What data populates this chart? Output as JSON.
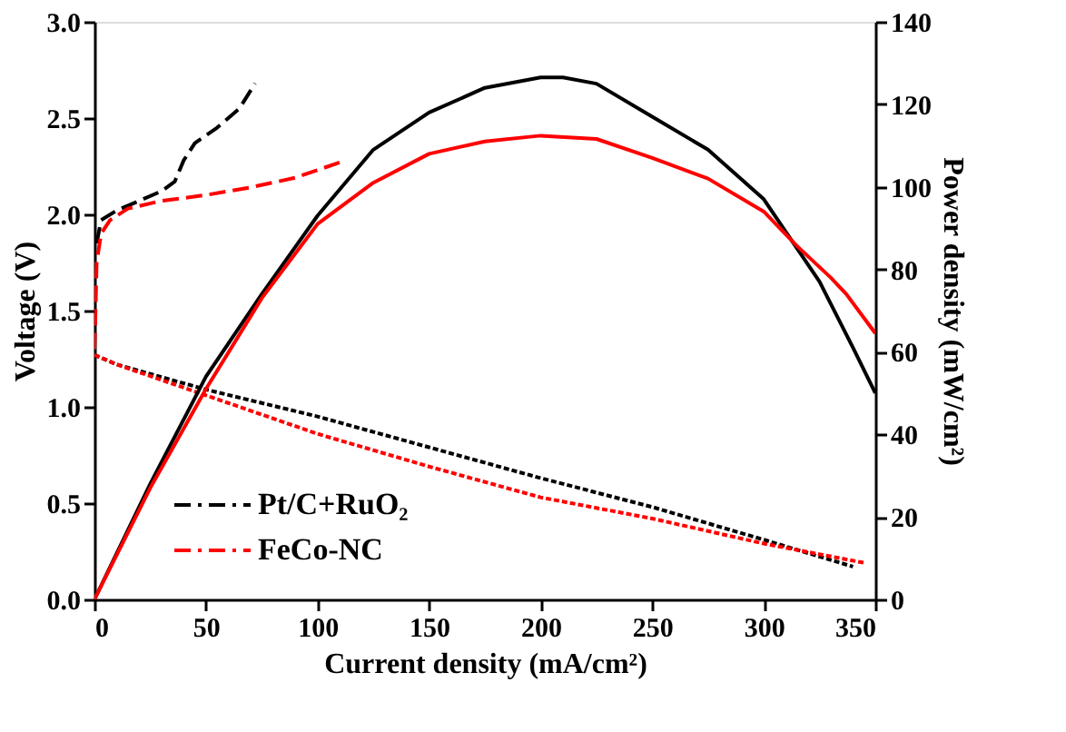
{
  "chart_data": {
    "type": "line",
    "xlabel": "Current density (mA/cm²)",
    "ylabel": "Voltage (V)",
    "y2label": "Power density (mW/cm²)",
    "xlim": [
      0,
      350
    ],
    "xticks": [
      0,
      50,
      100,
      150,
      200,
      250,
      300,
      350
    ],
    "ylim": [
      0,
      3.0
    ],
    "yticks": [
      {
        "value": 0,
        "label": "0.0"
      },
      0.5,
      {
        "value": 1,
        "label": "1.0"
      },
      1.5,
      {
        "value": 2,
        "label": "2.0"
      },
      2.5,
      {
        "value": 3,
        "label": "3.0"
      }
    ],
    "y2lim": [
      0,
      140
    ],
    "y2ticks": [
      0,
      20,
      40,
      60,
      80,
      100,
      120,
      140
    ],
    "grid": false,
    "legend": "bottom left",
    "marker": "none",
    "series": [
      {
        "name": "Pt/C+RuO₂",
        "color": "#000000",
        "line_style": "dashed",
        "x": [
          1,
          3,
          10,
          20,
          30,
          36,
          40,
          45,
          55,
          65,
          72
        ],
        "values": [
          1.85,
          1.97,
          2.02,
          2.07,
          2.12,
          2.17,
          2.28,
          2.37,
          2.45,
          2.55,
          2.68
        ]
      },
      {
        "name": "FeCo-NC",
        "color": "#ff0000",
        "line_style": "dashed",
        "x": [
          0,
          0.5,
          1,
          3,
          7,
          15,
          30,
          50,
          70,
          90,
          110
        ],
        "values": [
          1.3,
          1.5,
          1.75,
          1.9,
          1.97,
          2.03,
          2.07,
          2.1,
          2.14,
          2.19,
          2.27
        ]
      },
      {
        "color": "#000000",
        "line_style": "dotted",
        "x": [
          0,
          10,
          50,
          100,
          150,
          200,
          250,
          300,
          340
        ],
        "values": [
          1.27,
          1.22,
          1.09,
          0.95,
          0.79,
          0.63,
          0.48,
          0.31,
          0.17
        ]
      },
      {
        "color": "#ff0000",
        "line_style": "dotted",
        "x": [
          0,
          10,
          50,
          100,
          150,
          200,
          250,
          300,
          345
        ],
        "values": [
          1.27,
          1.22,
          1.06,
          0.86,
          0.69,
          0.53,
          0.42,
          0.29,
          0.19
        ]
      },
      {
        "color": "#000000",
        "line_style": "solid",
        "axis": "y2",
        "x": [
          0,
          25,
          50,
          75,
          100,
          125,
          150,
          175,
          200,
          210,
          225,
          250,
          275,
          300,
          325,
          340,
          350
        ],
        "values": [
          0,
          28,
          54,
          74,
          93,
          109,
          118,
          124,
          126.5,
          126.5,
          125,
          117,
          109,
          97,
          77,
          61,
          50
        ]
      },
      {
        "color": "#ff0000",
        "line_style": "solid",
        "axis": "y2",
        "x": [
          0,
          25,
          50,
          75,
          100,
          125,
          150,
          175,
          200,
          225,
          250,
          275,
          300,
          315,
          330,
          337,
          350
        ],
        "values": [
          0,
          27,
          51,
          73,
          91,
          101,
          108,
          111,
          112.4,
          111.6,
          107,
          102,
          94,
          85.6,
          78,
          74,
          64.5
        ]
      }
    ]
  }
}
